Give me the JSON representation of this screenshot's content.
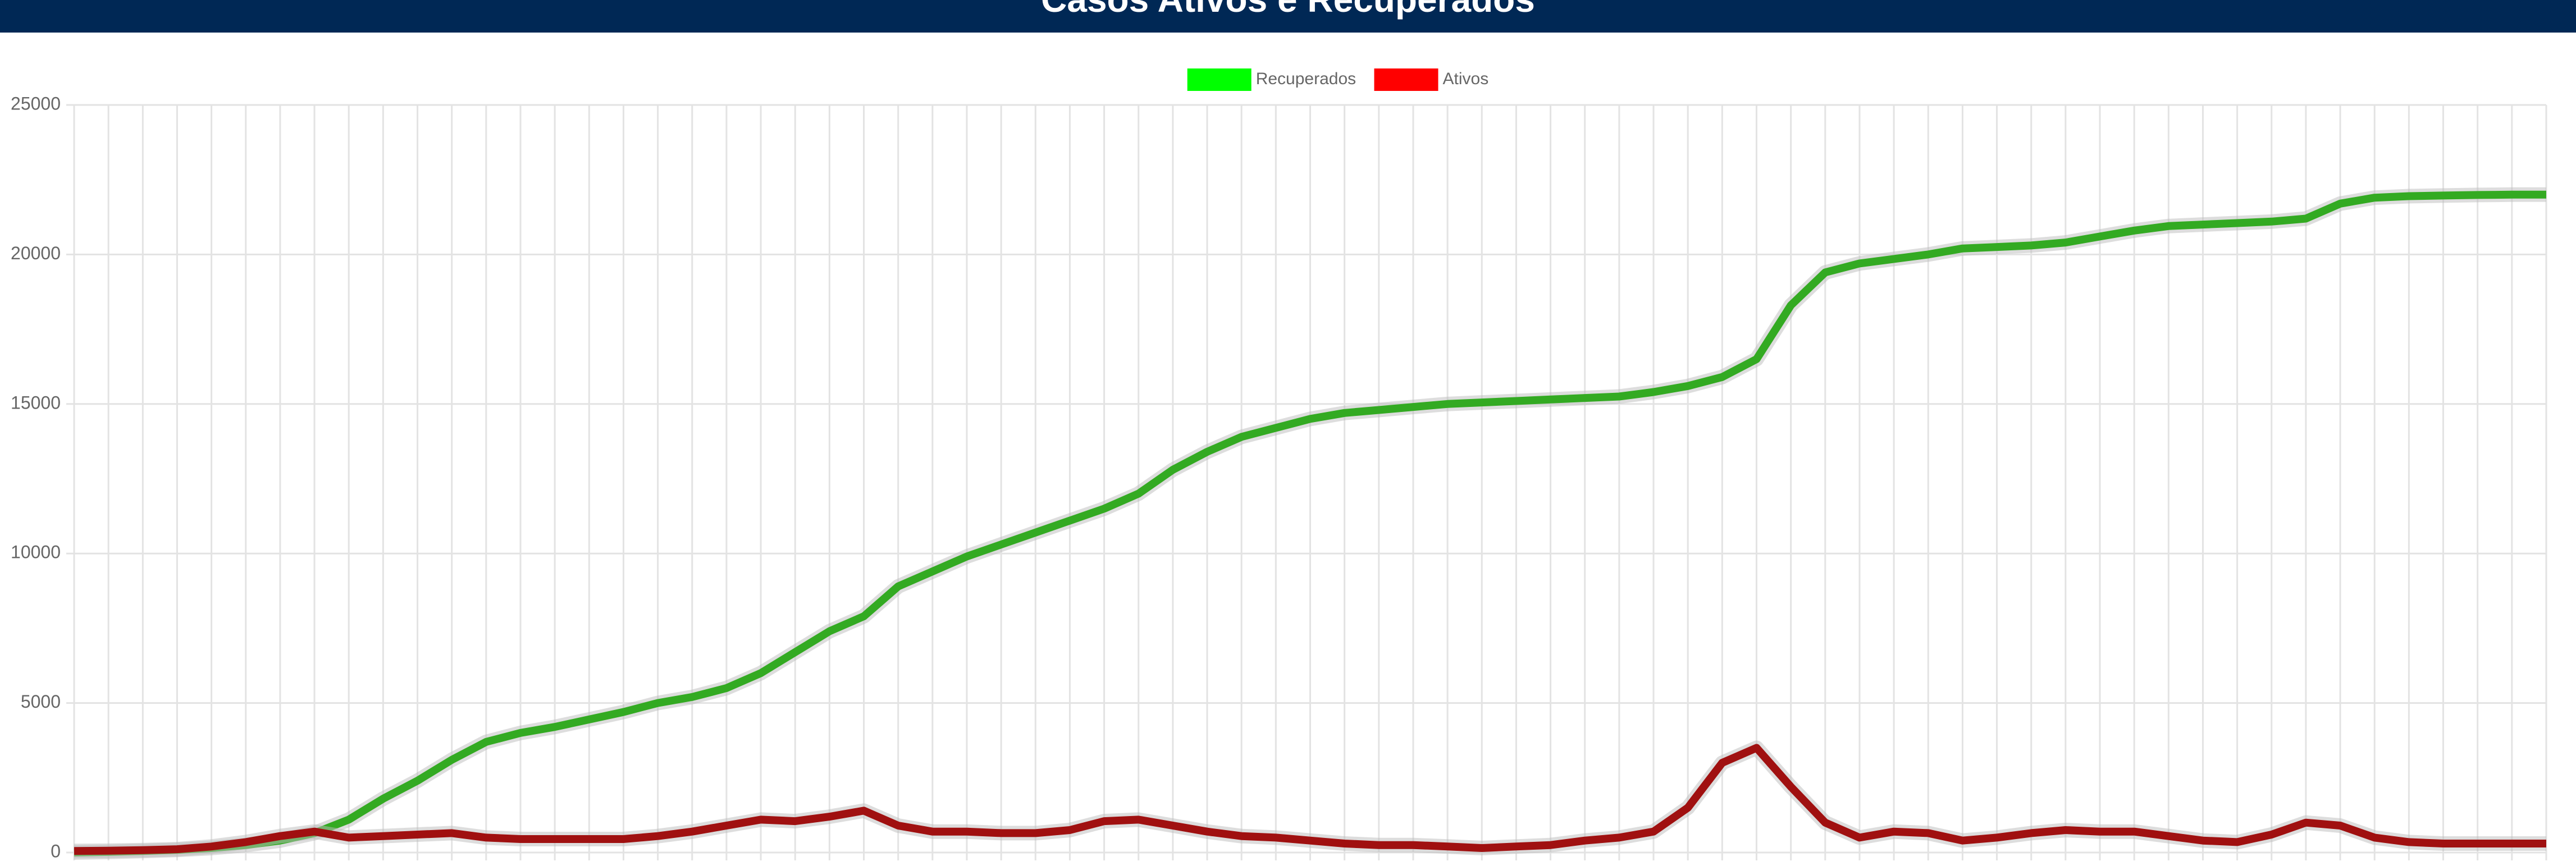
{
  "chart_data": {
    "type": "line",
    "title": "Casos Ativos e Recuperados",
    "categories": [
      null,
      null,
      null,
      null,
      null,
      null,
      null,
      null,
      null,
      null,
      null,
      null,
      null,
      null,
      null,
      null,
      null,
      null,
      null,
      null,
      null,
      null,
      null,
      null,
      null,
      null,
      null,
      null,
      null,
      null,
      null,
      null,
      null,
      null,
      null,
      null,
      null,
      null,
      null,
      null,
      null,
      null,
      null,
      null,
      null,
      null,
      null,
      null,
      null,
      null,
      null,
      null,
      null,
      null,
      null,
      null,
      null,
      null,
      null,
      null,
      null,
      null,
      null,
      null,
      null,
      null,
      null,
      null,
      null,
      null,
      null,
      null,
      null
    ],
    "series": [
      {
        "name": "Recuperados",
        "color": "#00ff00",
        "line_color": "#33aa22",
        "values": [
          0,
          20,
          50,
          90,
          150,
          250,
          400,
          650,
          1100,
          1800,
          2400,
          3100,
          3700,
          4000,
          4200,
          4450,
          4700,
          5000,
          5200,
          5500,
          6000,
          6700,
          7400,
          7900,
          8900,
          9400,
          9900,
          10300,
          10700,
          11100,
          11500,
          12000,
          12800,
          13400,
          13900,
          14200,
          14500,
          14700,
          14800,
          14900,
          15000,
          15050,
          15100,
          15150,
          15200,
          15250,
          15400,
          15600,
          15900,
          16500,
          18300,
          19400,
          19700,
          19850,
          20000,
          20200,
          20250,
          20300,
          20400,
          20600,
          20800,
          20950,
          21000,
          21050,
          21100,
          21200,
          21700,
          21900,
          21950,
          21970,
          21990,
          22000,
          22000
        ]
      },
      {
        "name": "Ativos",
        "color": "#ff0000",
        "line_color": "#a01010",
        "values": [
          50,
          60,
          80,
          110,
          200,
          350,
          550,
          700,
          500,
          550,
          600,
          650,
          500,
          450,
          450,
          450,
          450,
          550,
          700,
          900,
          1100,
          1050,
          1200,
          1400,
          900,
          700,
          700,
          650,
          650,
          750,
          1050,
          1100,
          900,
          700,
          550,
          500,
          400,
          300,
          250,
          250,
          200,
          150,
          200,
          250,
          400,
          500,
          700,
          1500,
          3000,
          3500,
          2200,
          1000,
          500,
          700,
          650,
          400,
          500,
          650,
          750,
          700,
          700,
          550,
          400,
          350,
          600,
          1000,
          900,
          500,
          350,
          300,
          300,
          300,
          300
        ]
      }
    ],
    "ylim": [
      0,
      25000
    ],
    "yticks": [
      0,
      5000,
      10000,
      15000,
      20000,
      25000
    ],
    "grid": true,
    "legend": "top"
  }
}
